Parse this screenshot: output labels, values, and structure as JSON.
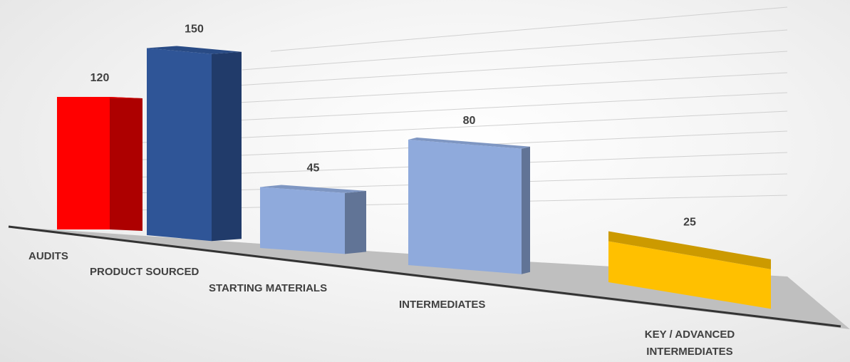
{
  "chart_data": {
    "type": "bar",
    "style": "3d-perspective",
    "categories": [
      "AUDITS",
      "PRODUCT SOURCED",
      "STARTING MATERIALS",
      "INTERMEDIATES",
      "KEY / ADVANCED INTERMEDIATES"
    ],
    "values": [
      120,
      150,
      45,
      80,
      25
    ],
    "data_labels": [
      "120",
      "150",
      "45",
      "80",
      "25"
    ],
    "colors": [
      "#ff0000",
      "#2f5597",
      "#8faadc",
      "#8faadc",
      "#ffc000"
    ],
    "ylim": [
      0,
      160
    ],
    "grid": true,
    "legend": "none"
  }
}
